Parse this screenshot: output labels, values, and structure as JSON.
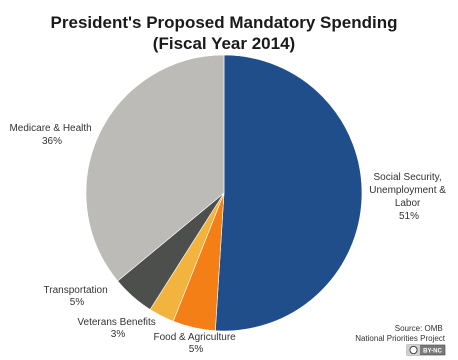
{
  "chart_data": {
    "type": "pie",
    "title": "President's Proposed Mandatory Spending",
    "subtitle": "(Fiscal Year 2014)",
    "slices": [
      {
        "name_lines": [
          "Social Security,",
          "Unemployment &",
          "Labor"
        ],
        "percent_label": "51%",
        "value": 51,
        "color": "#1f4e8a"
      },
      {
        "name_lines": [
          "Food & Agriculture"
        ],
        "percent_label": "5%",
        "value": 5,
        "color": "#f47f16"
      },
      {
        "name_lines": [
          "Veterans Benefits"
        ],
        "percent_label": "3%",
        "value": 3,
        "color": "#f3b43f"
      },
      {
        "name_lines": [
          "Transportation"
        ],
        "percent_label": "5%",
        "value": 5,
        "color": "#4d4f4d"
      },
      {
        "name_lines": [
          "Medicare & Health"
        ],
        "percent_label": "36%",
        "value": 36,
        "color": "#bdbbb8"
      }
    ],
    "source_lines": [
      "Source: OMB",
      "National Priorities Project"
    ],
    "license_badge": {
      "left": "cc",
      "right": "BY-NC"
    }
  }
}
